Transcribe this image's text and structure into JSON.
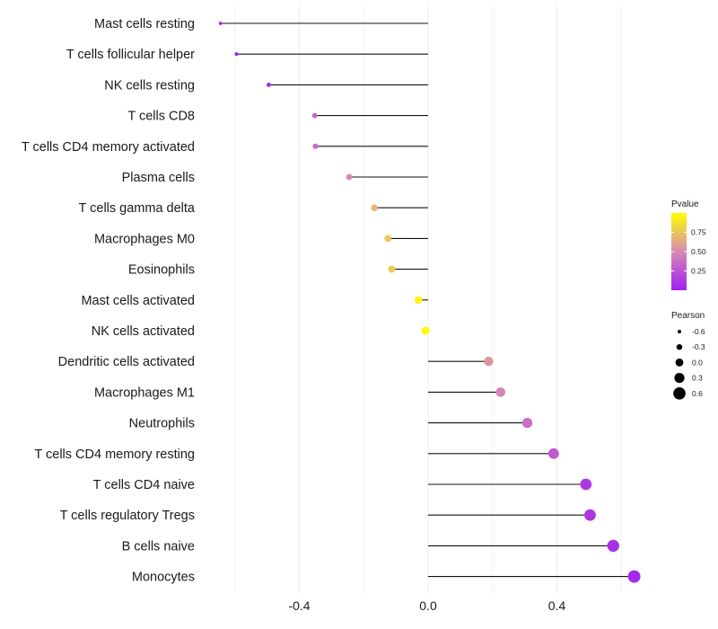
{
  "chart_data": {
    "type": "lollipop",
    "title": "",
    "xlabel": "",
    "ylabel": "",
    "xlim": [
      -0.65,
      0.65
    ],
    "x_ticks": [
      {
        "value": -0.4,
        "label": "-0.4"
      },
      {
        "value": 0.0,
        "label": "0.0"
      },
      {
        "value": 0.4,
        "label": "0.4"
      }
    ],
    "grid": true,
    "categories": [
      "Mast cells resting",
      "T cells follicular helper",
      "NK cells resting",
      "T cells CD8",
      "T cells CD4 memory activated",
      "Plasma cells",
      "T cells gamma delta",
      "Macrophages M0",
      "Eosinophils",
      "Mast cells activated",
      "NK cells activated",
      "Dendritic cells activated",
      "Macrophages M1",
      "Neutrophils",
      "T cells CD4 memory resting",
      "T cells CD4 naive",
      "T cells regulatory  Tregs ",
      "B cells naive",
      "Monocytes"
    ],
    "pearson": [
      -0.645,
      -0.595,
      -0.495,
      -0.352,
      -0.35,
      -0.245,
      -0.167,
      -0.125,
      -0.113,
      -0.03,
      -0.008,
      0.188,
      0.225,
      0.308,
      0.39,
      0.49,
      0.503,
      0.575,
      0.64
    ],
    "pvalue": [
      0.02,
      0.02,
      0.05,
      0.35,
      0.35,
      0.5,
      0.68,
      0.75,
      0.78,
      0.96,
      0.99,
      0.55,
      0.48,
      0.37,
      0.28,
      0.12,
      0.12,
      0.08,
      0.04
    ],
    "color_legend": {
      "title": "Pvalue",
      "ticks": [
        {
          "value": 0.75,
          "label": "0.75"
        },
        {
          "value": 0.5,
          "label": "0.50"
        },
        {
          "value": 0.25,
          "label": "0.25"
        }
      ],
      "range": [
        0.0,
        1.0
      ],
      "low_color": "#a020f0",
      "mid_color": "#d68ab4",
      "high_color": "#ffff00"
    },
    "size_legend": {
      "title": "Pearson",
      "entries": [
        {
          "value": -0.6,
          "label": "-0.6"
        },
        {
          "value": -0.3,
          "label": "-0.3"
        },
        {
          "value": 0.0,
          "label": "0.0"
        },
        {
          "value": 0.3,
          "label": "0.3"
        },
        {
          "value": 0.6,
          "label": "0.6"
        }
      ]
    }
  }
}
